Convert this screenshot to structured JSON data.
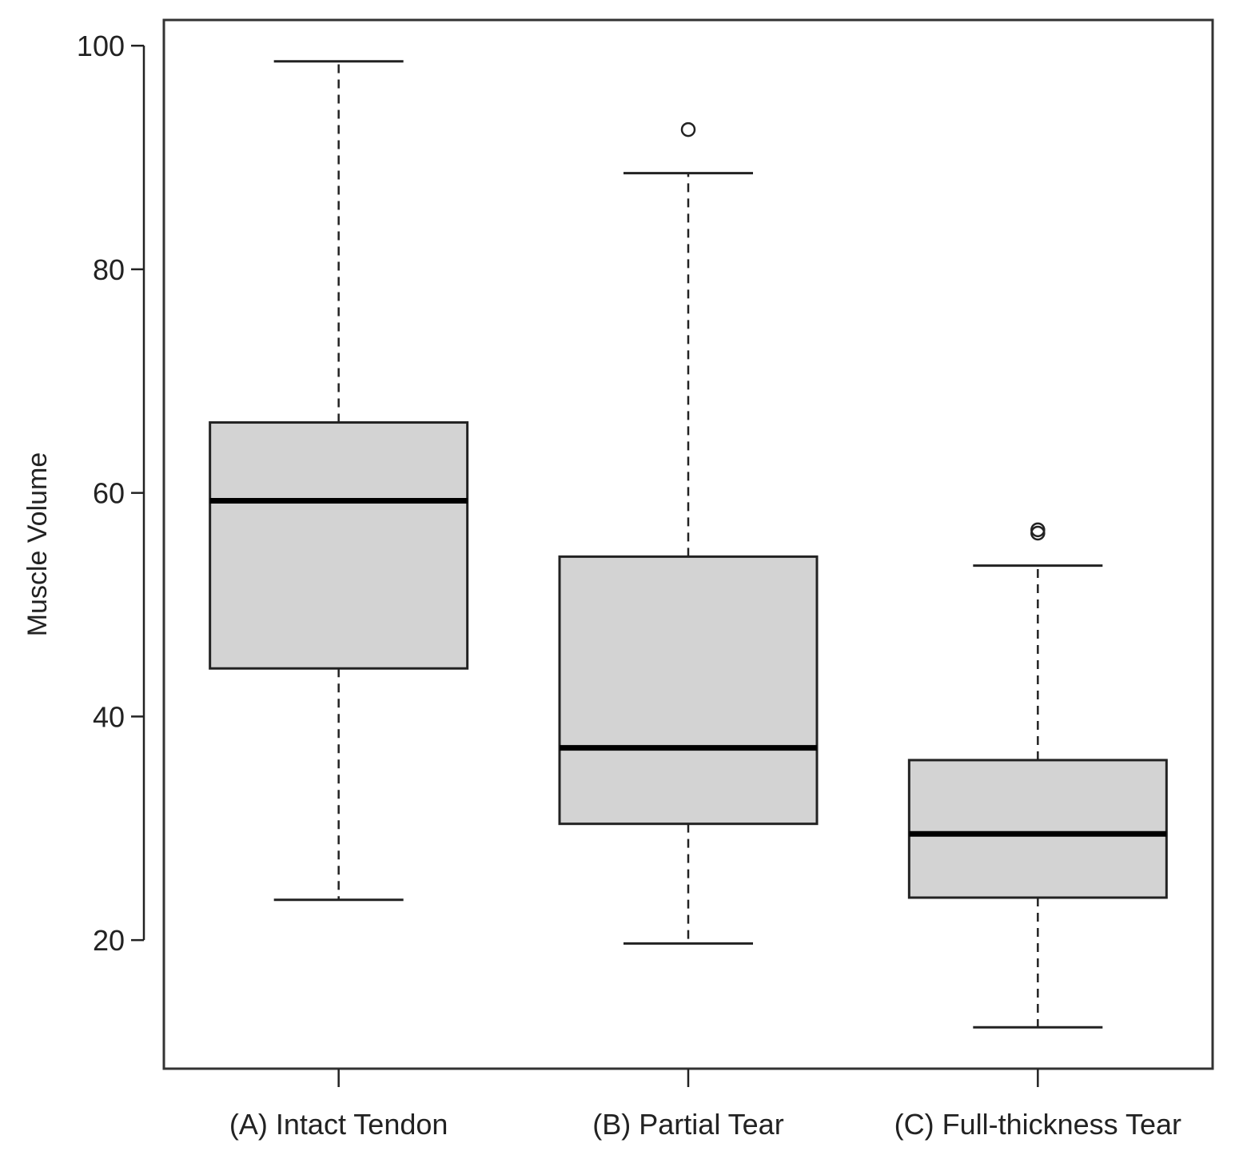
{
  "chart_data": {
    "type": "box",
    "title": "",
    "xlabel": "",
    "ylabel": "Muscle Volume",
    "ylim": [
      8.5,
      102.3
    ],
    "yticks": [
      20,
      40,
      60,
      80,
      100
    ],
    "grid": false,
    "categories": [
      "(A) Intact Tendon",
      "(B) Partial Tear",
      "(C) Full-thickness Tear"
    ],
    "boxes": [
      {
        "category": "(A) Intact Tendon",
        "whisker_low": 23.6,
        "q1": 44.3,
        "median": 59.3,
        "q3": 66.3,
        "whisker_high": 98.6,
        "outliers": []
      },
      {
        "category": "(B) Partial Tear",
        "whisker_low": 19.7,
        "q1": 30.4,
        "median": 37.2,
        "q3": 54.3,
        "whisker_high": 88.6,
        "outliers": [
          92.5
        ]
      },
      {
        "category": "(C) Full-thickness Tear",
        "whisker_low": 12.2,
        "q1": 23.8,
        "median": 29.5,
        "q3": 36.1,
        "whisker_high": 53.5,
        "outliers": [
          56.4,
          56.7
        ]
      }
    ],
    "colors": {
      "box_fill": "#d3d3d3",
      "stroke": "#222222"
    }
  }
}
